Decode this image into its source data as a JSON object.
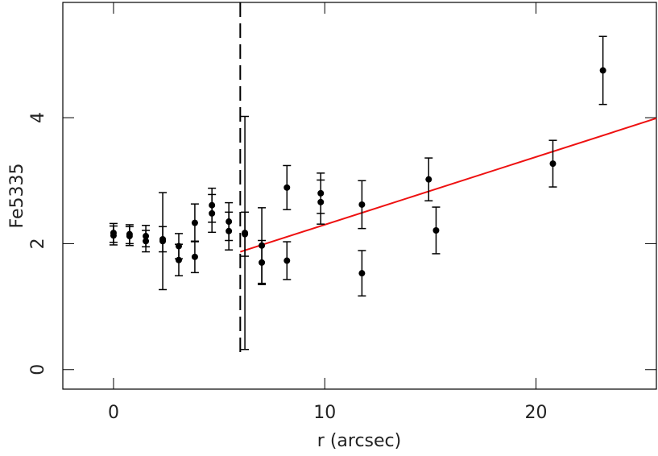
{
  "chart_data": {
    "type": "scatter",
    "x_label": "r (arcsec)",
    "y_label": "Fe5335",
    "xlim": [
      -2.4,
      25.7
    ],
    "ylim": [
      -0.31,
      5.83
    ],
    "xticks": [
      0,
      10,
      20
    ],
    "yticks": [
      0,
      2,
      4
    ],
    "series": [
      {
        "color": "#000000",
        "x": [
          0,
          0,
          0.76,
          0.76,
          1.53,
          1.53,
          2.33,
          2.33,
          3.09,
          3.09,
          3.85,
          3.85,
          4.66,
          4.66,
          5.46,
          5.46,
          6.22,
          6.22,
          7.02,
          7.02,
          8.21,
          8.21,
          9.81,
          9.81,
          11.76,
          11.76,
          14.92,
          15.27,
          20.8,
          23.17
        ],
        "values": [
          2.17,
          2.13,
          2.15,
          2.12,
          2.12,
          2.04,
          2.07,
          2.04,
          1.96,
          1.74,
          2.33,
          1.79,
          2.61,
          2.48,
          2.35,
          2.2,
          2.17,
          2.15,
          1.97,
          1.7,
          2.89,
          1.73,
          2.8,
          2.66,
          2.62,
          1.53,
          3.02,
          2.21,
          3.27,
          4.75
        ],
        "errors": [
          0.15,
          0.15,
          0.15,
          0.15,
          0.17,
          0.17,
          0.2,
          0.77,
          0.2,
          0.25,
          0.3,
          0.25,
          0.27,
          0.3,
          0.3,
          0.3,
          1.85,
          0.35,
          0.6,
          0.35,
          0.35,
          0.3,
          0.32,
          0.35,
          0.38,
          0.36,
          0.34,
          0.37,
          0.37,
          0.54
        ]
      }
    ],
    "fit_line": {
      "color": "#ee1111",
      "x": [
        6.0,
        25.7
      ],
      "y": [
        1.87,
        3.99
      ]
    },
    "vline": {
      "x": 6.0,
      "dashed": true
    }
  }
}
